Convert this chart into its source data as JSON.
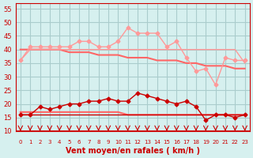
{
  "x": [
    0,
    1,
    2,
    3,
    4,
    5,
    6,
    7,
    8,
    9,
    10,
    11,
    12,
    13,
    14,
    15,
    16,
    17,
    18,
    19,
    20,
    21,
    22,
    23
  ],
  "gust_line": [
    36,
    41,
    41,
    41,
    41,
    41,
    43,
    43,
    41,
    41,
    43,
    48,
    46,
    46,
    46,
    41,
    43,
    37,
    32,
    33,
    27,
    37,
    36,
    36
  ],
  "gust_trend": [
    40,
    40,
    40,
    40,
    40,
    39,
    39,
    39,
    38,
    38,
    38,
    37,
    37,
    37,
    36,
    36,
    36,
    35,
    35,
    34,
    34,
    34,
    33,
    33
  ],
  "wind_line": [
    16,
    16,
    19,
    18,
    19,
    20,
    20,
    21,
    21,
    22,
    21,
    21,
    24,
    23,
    22,
    21,
    20,
    21,
    19,
    14,
    16,
    16,
    15,
    16
  ],
  "wind_trend": [
    17,
    17,
    17,
    17,
    17,
    17,
    17,
    17,
    17,
    17,
    17,
    16,
    16,
    16,
    16,
    16,
    16,
    16,
    16,
    16,
    16,
    16,
    16,
    16
  ],
  "wind_flat": [
    16,
    16,
    16,
    16,
    16,
    16,
    16,
    16,
    16,
    16,
    16,
    16,
    16,
    16,
    16,
    16,
    16,
    16,
    16,
    16,
    16,
    16,
    16,
    16
  ],
  "gust_flat": [
    36,
    40,
    40,
    40,
    40,
    40,
    40,
    40,
    40,
    40,
    40,
    40,
    40,
    40,
    40,
    40,
    40,
    40,
    40,
    40,
    40,
    40,
    40,
    35
  ],
  "ylim": [
    10,
    57
  ],
  "yticks": [
    10,
    15,
    20,
    25,
    30,
    35,
    40,
    45,
    50,
    55
  ],
  "xlabel": "Vent moyen/en rafales ( km/h )",
  "bg_color": "#d6f0ef",
  "grid_color": "#aacccc",
  "gust_color": "#ff9999",
  "wind_color": "#cc0000",
  "trend_color": "#ff6666",
  "arrow_color": "#cc0000"
}
